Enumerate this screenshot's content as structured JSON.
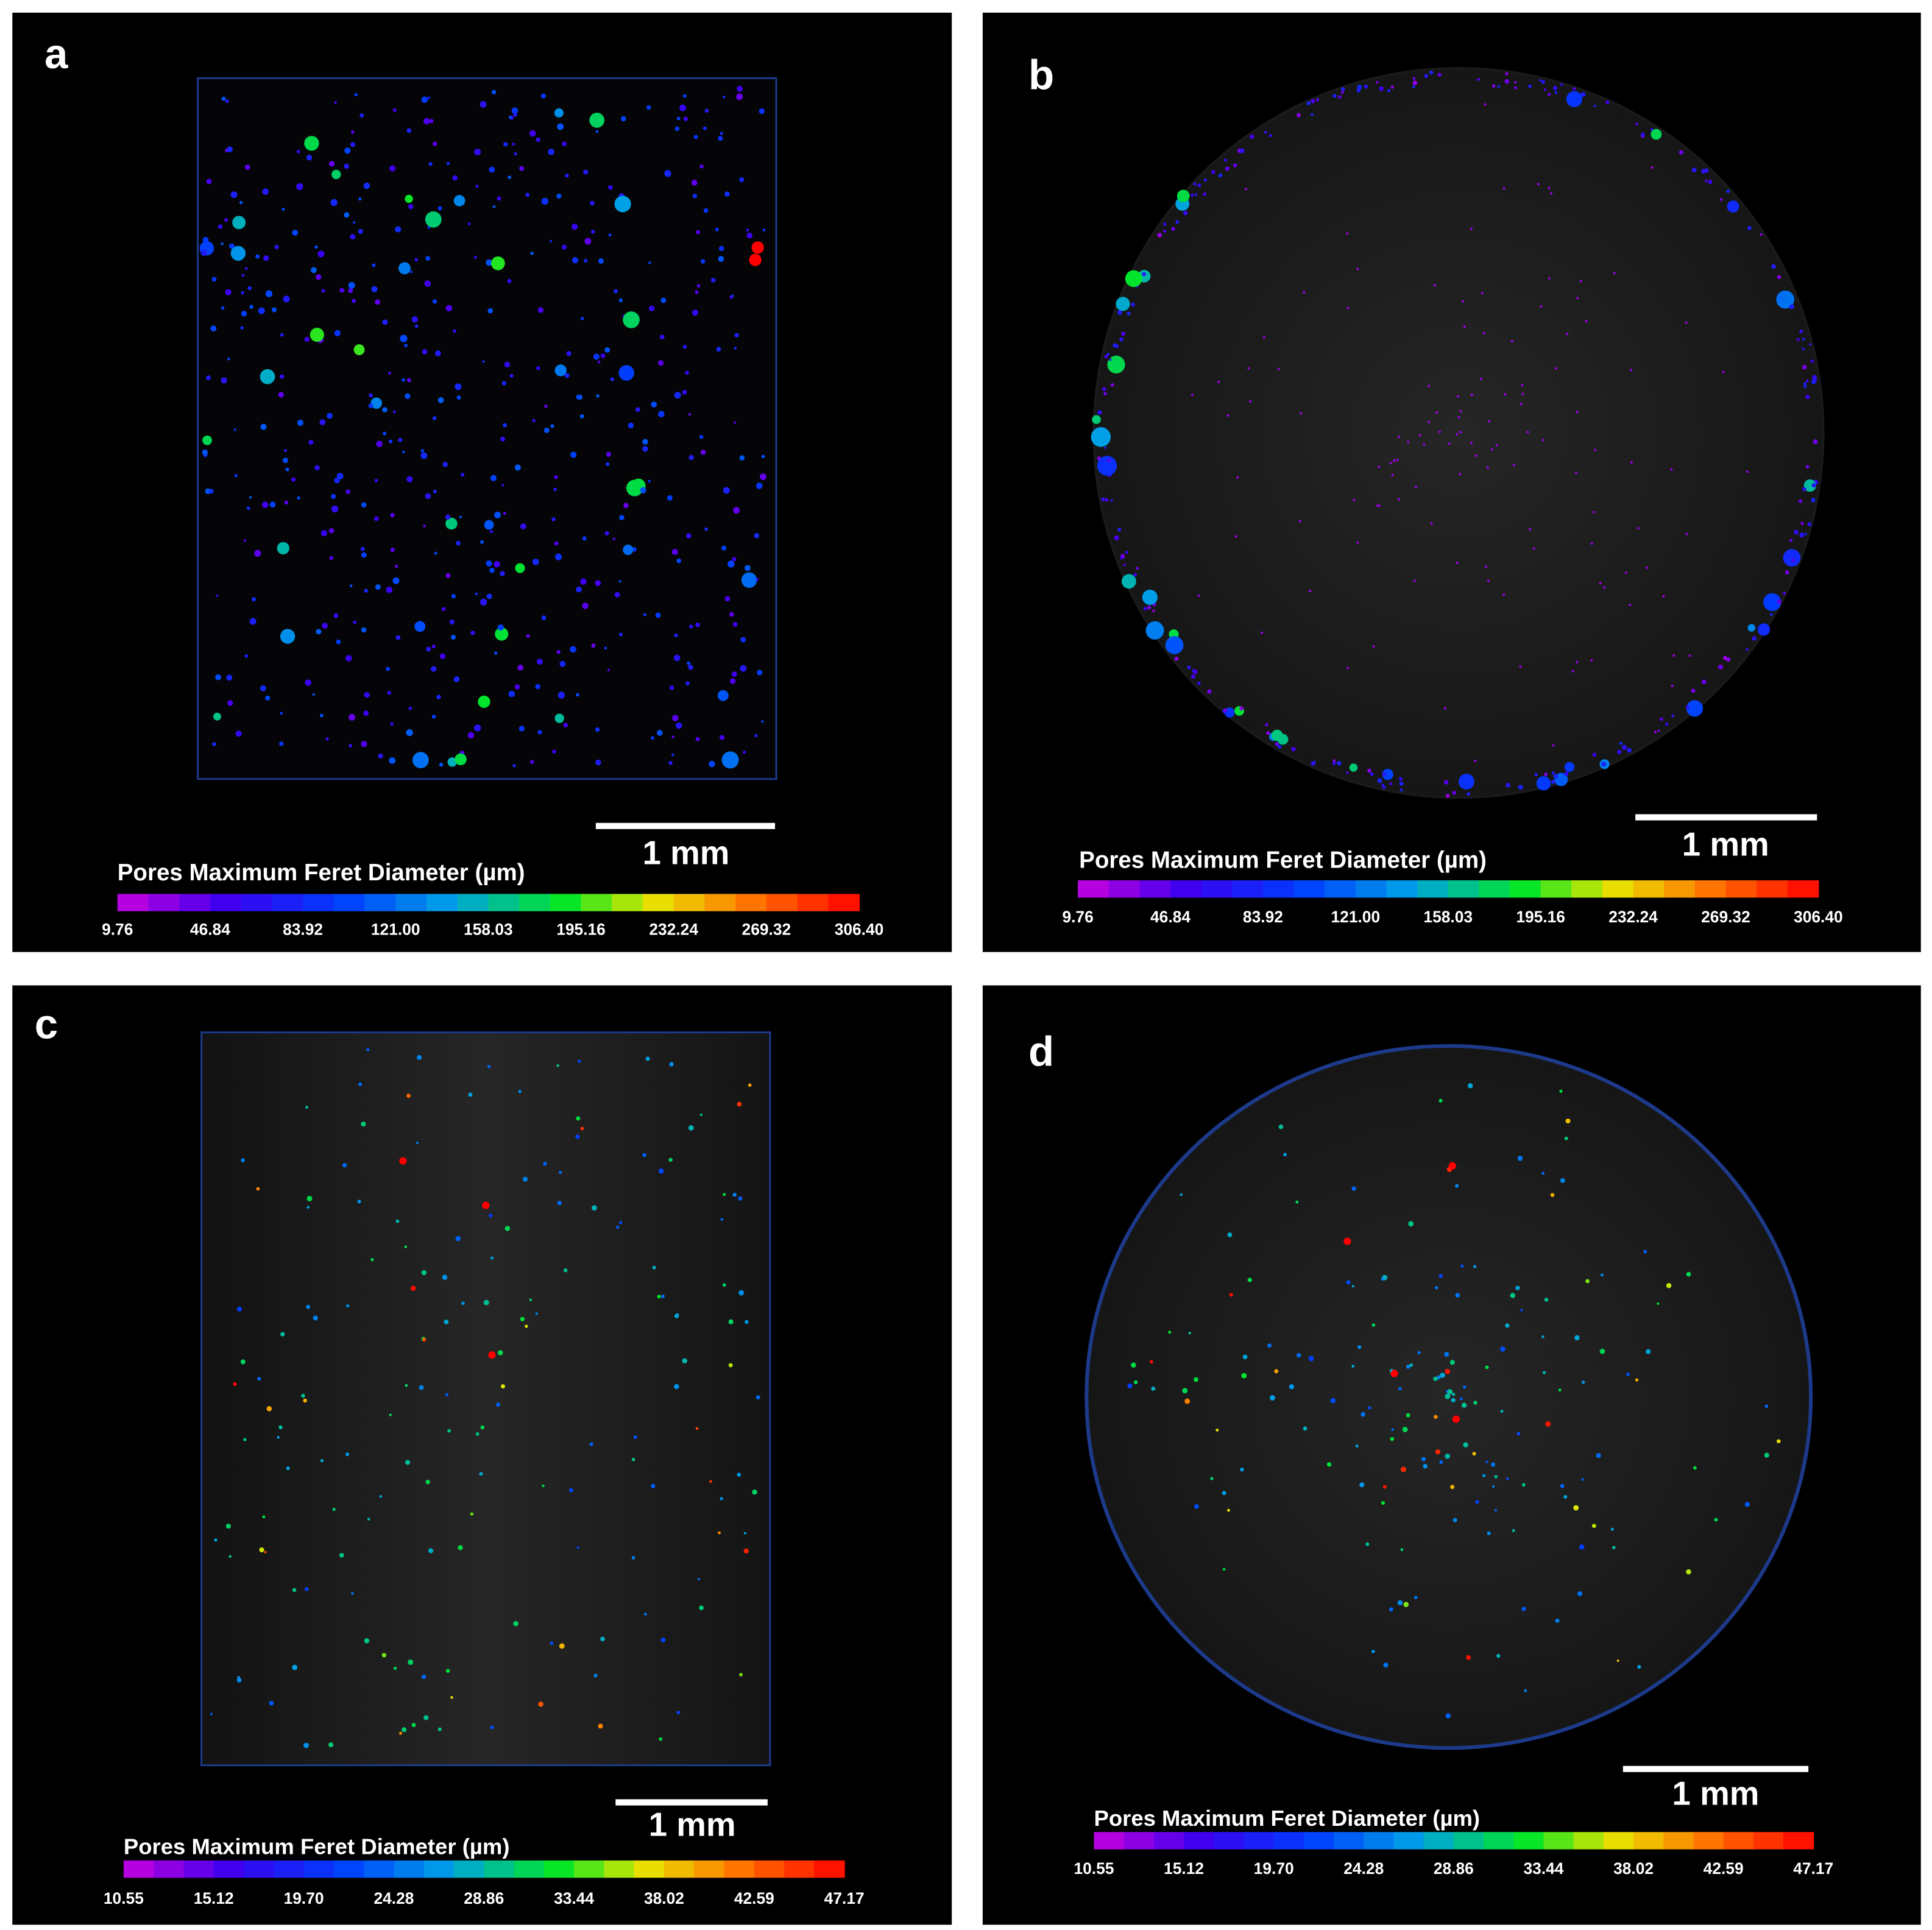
{
  "panels": [
    {
      "label": "a",
      "scale_bar": "1 mm",
      "colorbar": {
        "title": "Pores Maximum Feret Diameter (µm)",
        "ticks": [
          "9.76",
          "46.84",
          "83.92",
          "121.00",
          "158.03",
          "195.16",
          "232.24",
          "269.32",
          "306.40"
        ]
      }
    },
    {
      "label": "b",
      "scale_bar": "1 mm",
      "colorbar": {
        "title": "Pores Maximum Feret Diameter (µm)",
        "ticks": [
          "9.76",
          "46.84",
          "83.92",
          "121.00",
          "158.03",
          "195.16",
          "232.24",
          "269.32",
          "306.40"
        ]
      }
    },
    {
      "label": "c",
      "scale_bar": "1 mm",
      "colorbar": {
        "title": "Pores Maximum Feret Diameter (µm)",
        "ticks": [
          "10.55",
          "15.12",
          "19.70",
          "24.28",
          "28.86",
          "33.44",
          "38.02",
          "42.59",
          "47.17"
        ]
      }
    },
    {
      "label": "d",
      "scale_bar": "1 mm",
      "colorbar": {
        "title": "Pores Maximum Feret Diameter (µm)",
        "ticks": [
          "10.55",
          "15.12",
          "19.70",
          "24.28",
          "28.86",
          "33.44",
          "38.02",
          "42.59",
          "47.17"
        ]
      }
    }
  ]
}
